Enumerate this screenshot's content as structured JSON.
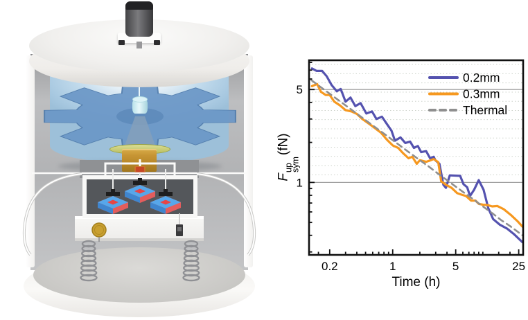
{
  "colors": {
    "blue": "#5452af",
    "orange": "#f6981f",
    "thermal": "#8f8f8f",
    "grid_solid": "#a0a0a0",
    "grid_minor": "#ccd2ca",
    "axis": "#111111"
  },
  "chart_data": {
    "type": "line",
    "title": "",
    "xlabel": "Time (h)",
    "ylabel": "F_sym^up (fN)",
    "ylabel_parts": {
      "symbol": "F",
      "sup": "up",
      "sub": "sym",
      "unit": "(fN)"
    },
    "xscale": "log",
    "yscale": "log",
    "xlim": [
      0.118,
      28
    ],
    "ylim": [
      0.285,
      8.3
    ],
    "grid": "horizontal solid at 5 and 1, dotted minor rows above 1",
    "legend_position": "top-right",
    "xticks": [
      {
        "v": 0.2,
        "label": "0.2"
      },
      {
        "v": 1,
        "label": "1"
      },
      {
        "v": 5,
        "label": "5"
      },
      {
        "v": 25,
        "label": "25"
      }
    ],
    "yticks": [
      {
        "v": 5,
        "label": "5"
      },
      {
        "v": 1,
        "label": "1"
      }
    ],
    "xminor": [
      0.15,
      0.3,
      0.4,
      0.5,
      0.6,
      0.7,
      0.8,
      0.9,
      2,
      3,
      4,
      6,
      7,
      8,
      9,
      10,
      15,
      20
    ],
    "yminor": [
      8,
      7,
      6,
      4,
      3,
      2,
      0.9,
      0.8,
      0.7,
      0.6,
      0.5,
      0.4,
      0.3
    ],
    "solid_grid_values": [
      5,
      1
    ],
    "minor_grid_values": [
      7.72,
      6.58,
      5.61,
      4.78,
      4.08,
      3.48,
      2.97,
      2.53,
      2.16,
      1.84,
      1.57,
      1.34,
      1.14
    ],
    "series": [
      {
        "name": "0.2mm",
        "color": "#5452af",
        "dash": null,
        "width": 3.2,
        "points": [
          [
            0.127,
            7.2
          ],
          [
            0.143,
            6.9
          ],
          [
            0.165,
            6.9
          ],
          [
            0.185,
            6.3
          ],
          [
            0.21,
            5.4
          ],
          [
            0.24,
            4.85
          ],
          [
            0.265,
            5.05
          ],
          [
            0.3,
            4.05
          ],
          [
            0.34,
            4.35
          ],
          [
            0.385,
            3.75
          ],
          [
            0.44,
            3.95
          ],
          [
            0.51,
            3.3
          ],
          [
            0.59,
            3.42
          ],
          [
            0.66,
            3.0
          ],
          [
            0.76,
            3.12
          ],
          [
            0.86,
            2.76
          ],
          [
            0.97,
            2.45
          ],
          [
            1.06,
            2.06
          ],
          [
            1.22,
            2.18
          ],
          [
            1.38,
            1.98
          ],
          [
            1.56,
            2.03
          ],
          [
            1.72,
            1.82
          ],
          [
            1.9,
            1.88
          ],
          [
            2.07,
            1.69
          ],
          [
            2.35,
            1.72
          ],
          [
            2.6,
            1.52
          ],
          [
            2.85,
            1.56
          ],
          [
            2.97,
            1.47
          ],
          [
            3.3,
            1.38
          ],
          [
            3.65,
            0.96
          ],
          [
            3.9,
            0.91
          ],
          [
            4.3,
            1.13
          ],
          [
            5.6,
            1.12
          ],
          [
            6.1,
            0.97
          ],
          [
            6.7,
            0.92
          ],
          [
            7.2,
            0.79
          ],
          [
            8.0,
            0.88
          ],
          [
            9.0,
            1.04
          ],
          [
            10.2,
            0.88
          ],
          [
            11.5,
            0.64
          ],
          [
            13,
            0.53
          ],
          [
            15.5,
            0.48
          ],
          [
            18.5,
            0.45
          ],
          [
            22,
            0.41
          ],
          [
            27.5,
            0.355
          ]
        ]
      },
      {
        "name": "0.3mm",
        "color": "#f6981f",
        "dash": null,
        "width": 3.2,
        "points": [
          [
            0.127,
            5.3
          ],
          [
            0.145,
            5.5
          ],
          [
            0.16,
            4.8
          ],
          [
            0.18,
            4.55
          ],
          [
            0.2,
            4.55
          ],
          [
            0.225,
            4.05
          ],
          [
            0.26,
            3.8
          ],
          [
            0.3,
            3.5
          ],
          [
            0.35,
            3.42
          ],
          [
            0.4,
            3.28
          ],
          [
            0.46,
            3.0
          ],
          [
            0.56,
            2.73
          ],
          [
            0.64,
            2.55
          ],
          [
            0.74,
            2.37
          ],
          [
            0.86,
            2.1
          ],
          [
            1.0,
            1.9
          ],
          [
            1.15,
            1.82
          ],
          [
            1.3,
            1.66
          ],
          [
            1.5,
            1.52
          ],
          [
            1.65,
            1.56
          ],
          [
            1.85,
            1.38
          ],
          [
            2.0,
            1.47
          ],
          [
            2.35,
            1.43
          ],
          [
            2.65,
            1.47
          ],
          [
            2.85,
            1.5
          ],
          [
            3.2,
            1.42
          ],
          [
            3.45,
            1.02
          ],
          [
            3.9,
            0.96
          ],
          [
            4.5,
            0.91
          ],
          [
            5.2,
            0.83
          ],
          [
            5.75,
            0.81
          ],
          [
            6.5,
            0.79
          ],
          [
            7.4,
            0.73
          ],
          [
            8.3,
            0.73
          ],
          [
            9.0,
            0.69
          ],
          [
            10.0,
            0.68
          ],
          [
            11.3,
            0.675
          ],
          [
            12.7,
            0.66
          ],
          [
            14.5,
            0.665
          ],
          [
            17,
            0.63
          ],
          [
            20.4,
            0.57
          ],
          [
            24.3,
            0.51
          ],
          [
            27.5,
            0.465
          ]
        ]
      },
      {
        "name": "Thermal",
        "color": "#8f8f8f",
        "dash": [
          8,
          6
        ],
        "width": 2.6,
        "points": [
          [
            0.125,
            5.88
          ],
          [
            0.16,
            5.2
          ],
          [
            0.2,
            4.65
          ],
          [
            0.25,
            4.16
          ],
          [
            0.32,
            3.68
          ],
          [
            0.4,
            3.29
          ],
          [
            0.5,
            2.94
          ],
          [
            0.63,
            2.62
          ],
          [
            0.8,
            2.33
          ],
          [
            1.0,
            2.08
          ],
          [
            1.26,
            1.85
          ],
          [
            1.6,
            1.64
          ],
          [
            2.0,
            1.47
          ],
          [
            2.5,
            1.32
          ],
          [
            3.2,
            1.16
          ],
          [
            4.0,
            1.04
          ],
          [
            5.0,
            0.93
          ],
          [
            6.3,
            0.83
          ],
          [
            8.0,
            0.74
          ],
          [
            10.0,
            0.66
          ],
          [
            12.6,
            0.59
          ],
          [
            16,
            0.52
          ],
          [
            20,
            0.47
          ],
          [
            25,
            0.42
          ],
          [
            27.5,
            0.4
          ]
        ]
      }
    ]
  }
}
